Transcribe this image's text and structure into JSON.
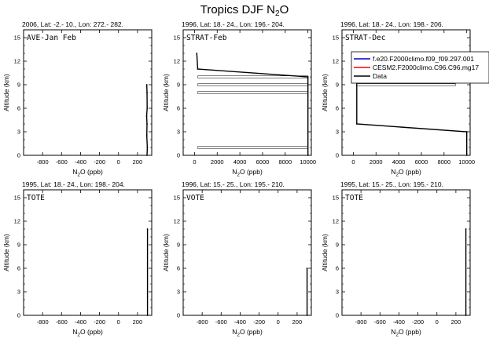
{
  "figure": {
    "title_main": "Tropics DJF N",
    "title_sub": "2",
    "title_end": "O"
  },
  "axes_text": {
    "xlabel_main": "N",
    "xlabel_sub": "2",
    "xlabel_end": "O (ppb)",
    "ylabel": "Altitude (km)"
  },
  "legend": {
    "entries": [
      {
        "label": "f.e20.F2000climo.f09_f09.297.001",
        "color": "#0000cc"
      },
      {
        "label": "CESM2.F2000climo.C96.C96.mg17",
        "color": "#ff0000"
      },
      {
        "label": "Data",
        "color": "#000000"
      }
    ]
  },
  "chart_data": [
    {
      "type": "line",
      "subtitle": "2006, Lat: -2.- 10., Lon: 272.- 282.",
      "panel_label": "AVE-Jan Feb",
      "xlabel": "N2O (ppb)",
      "ylabel": "Altitude (km)",
      "xlim": [
        -1000,
        350
      ],
      "ylim": [
        0,
        16
      ],
      "xticks": [
        -800,
        -600,
        -400,
        -200,
        0,
        200
      ],
      "yticks": [
        0,
        3,
        6,
        9,
        12,
        15
      ],
      "series": [
        {
          "color": "#000000",
          "x": [
            298,
            300,
            302,
            296,
            300,
            298,
            304,
            300
          ],
          "y": [
            9,
            8,
            6,
            5,
            4,
            2.5,
            1,
            0
          ]
        }
      ],
      "ranges": [],
      "grid": false
    },
    {
      "type": "line",
      "subtitle": "1996, Lat: 18.- 24., Lon: 196.- 204.",
      "panel_label": "STRAT-Feb",
      "xlabel": "N2O (ppb)",
      "ylabel": "Altitude (km)",
      "xlim": [
        -1000,
        10300
      ],
      "ylim": [
        0,
        16
      ],
      "xticks": [
        0,
        2000,
        4000,
        6000,
        8000,
        10000
      ],
      "yticks": [
        0,
        3,
        6,
        9,
        12,
        15
      ],
      "series": [
        {
          "color": "#000000",
          "x": [
            200,
            280,
            10000,
            10000
          ],
          "y": [
            13,
            11,
            10,
            0
          ]
        }
      ],
      "ranges": [
        {
          "y": 10,
          "x0": 280,
          "x1": 10000
        },
        {
          "y": 9,
          "x0": 280,
          "x1": 10000
        },
        {
          "y": 8,
          "x0": 280,
          "x1": 10000
        },
        {
          "y": 1,
          "x0": 280,
          "x1": 10000
        }
      ],
      "grid": false
    },
    {
      "type": "line",
      "subtitle": "1996, Lat: 18.- 24., Lon: 198.- 206.",
      "panel_label": "STRAT-Dec",
      "xlabel": "N2O (ppb)",
      "ylabel": "Altitude (km)",
      "xlim": [
        -1000,
        10300
      ],
      "ylim": [
        0,
        16
      ],
      "xticks": [
        0,
        2000,
        4000,
        6000,
        8000,
        10000
      ],
      "yticks": [
        0,
        3,
        6,
        9,
        12,
        15
      ],
      "series": [
        {
          "color": "#000000",
          "x": [
            300,
            300,
            10000,
            10000
          ],
          "y": [
            13,
            4,
            3,
            0
          ]
        }
      ],
      "ranges": [
        {
          "y": 9,
          "x0": 300,
          "x1": 9000
        }
      ],
      "grid": false
    },
    {
      "type": "line",
      "subtitle": "1995, Lat: 18.- 24., Lon: 198.- 204.",
      "panel_label": "TOTE",
      "xlabel": "N2O (ppb)",
      "ylabel": "Altitude (km)",
      "xlim": [
        -1000,
        350
      ],
      "ylim": [
        0,
        16
      ],
      "xticks": [
        -800,
        -600,
        -400,
        -200,
        0,
        200
      ],
      "yticks": [
        0,
        3,
        6,
        9,
        12,
        15
      ],
      "series": [
        {
          "color": "#000000",
          "x": [
            305,
            305
          ],
          "y": [
            11,
            0
          ]
        }
      ],
      "ranges": [],
      "grid": false
    },
    {
      "type": "line",
      "subtitle": "1996, Lat: 15.- 25., Lon: 195.- 210.",
      "panel_label": "VOTE",
      "xlabel": "N2O (ppb)",
      "ylabel": "Altitude (km)",
      "xlim": [
        -1000,
        350
      ],
      "ylim": [
        0,
        16
      ],
      "xticks": [
        -800,
        -600,
        -400,
        -200,
        0,
        200
      ],
      "yticks": [
        0,
        3,
        6,
        9,
        12,
        15
      ],
      "series": [
        {
          "color": "#000000",
          "x": [
            305,
            305
          ],
          "y": [
            6,
            0
          ]
        }
      ],
      "ranges": [],
      "grid": false
    },
    {
      "type": "line",
      "subtitle": "1995, Lat: 15.- 25., Lon: 195.- 210.",
      "panel_label": "TOTE",
      "xlabel": "N2O (ppb)",
      "ylabel": "Altitude (km)",
      "xlim": [
        -1000,
        350
      ],
      "ylim": [
        0,
        16
      ],
      "xticks": [
        -800,
        -600,
        -400,
        -200,
        0,
        200
      ],
      "yticks": [
        0,
        3,
        6,
        9,
        12,
        15
      ],
      "series": [
        {
          "color": "#000000",
          "x": [
            305,
            305
          ],
          "y": [
            11,
            0
          ]
        }
      ],
      "ranges": [],
      "grid": false
    }
  ]
}
